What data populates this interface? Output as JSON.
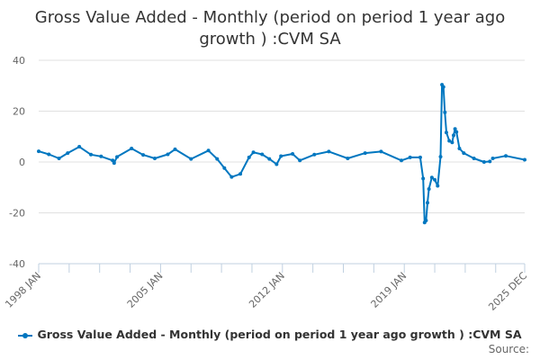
{
  "chart_data": {
    "type": "line",
    "title_line1": "Gross Value Added - Monthly (period on period 1 year ago",
    "title_line2": "growth ) :CVM SA",
    "xlabel": "",
    "ylabel": "",
    "ylim": [
      -40,
      40
    ],
    "yticks": [
      "40",
      "20",
      "0",
      "-20",
      "-40"
    ],
    "yticks_values": [
      40,
      20,
      0,
      -20,
      -40
    ],
    "xlim": [
      "1998-01",
      "2025-12"
    ],
    "xticks": [
      "1998 JAN",
      "2005 JAN",
      "2012 JAN",
      "2019 JAN",
      "2025 DEC"
    ],
    "xticks_dates": [
      "1998-01",
      "2005-01",
      "2012-01",
      "2019-01",
      "2025-12"
    ],
    "grid": "horizontal",
    "legend_position": "bottom",
    "color": "#0077c0",
    "series": [
      {
        "name": "Gross Value Added - Monthly (period on period 1 year ago growth ) :CVM SA",
        "points": [
          [
            "1998-01",
            4.2
          ],
          [
            "1998-08",
            3.0
          ],
          [
            "1999-03",
            1.4
          ],
          [
            "1999-09",
            3.5
          ],
          [
            "2000-05",
            6.0
          ],
          [
            "2001-01",
            2.9
          ],
          [
            "2001-08",
            2.2
          ],
          [
            "2002-04",
            0.6
          ],
          [
            "2002-05",
            -0.4
          ],
          [
            "2002-07",
            2.0
          ],
          [
            "2003-05",
            5.3
          ],
          [
            "2004-01",
            2.8
          ],
          [
            "2004-09",
            1.4
          ],
          [
            "2005-06",
            3.0
          ],
          [
            "2005-11",
            5.0
          ],
          [
            "2006-10",
            1.2
          ],
          [
            "2007-10",
            4.5
          ],
          [
            "2008-04",
            1.2
          ],
          [
            "2008-09",
            -2.4
          ],
          [
            "2009-02",
            -5.9
          ],
          [
            "2009-08",
            -4.7
          ],
          [
            "2010-02",
            1.8
          ],
          [
            "2010-05",
            3.8
          ],
          [
            "2010-11",
            3.0
          ],
          [
            "2011-04",
            1.2
          ],
          [
            "2011-09",
            -0.9
          ],
          [
            "2011-12",
            2.3
          ],
          [
            "2012-08",
            3.2
          ],
          [
            "2013-01",
            0.6
          ],
          [
            "2013-11",
            2.9
          ],
          [
            "2014-09",
            4.1
          ],
          [
            "2015-10",
            1.4
          ],
          [
            "2016-10",
            3.5
          ],
          [
            "2017-09",
            4.1
          ],
          [
            "2018-11",
            0.6
          ],
          [
            "2019-05",
            1.8
          ],
          [
            "2019-12",
            1.8
          ],
          [
            "2020-02",
            -6.5
          ],
          [
            "2020-03",
            -23.8
          ],
          [
            "2020-04",
            -23.0
          ],
          [
            "2020-05",
            -16.0
          ],
          [
            "2020-06",
            -10.6
          ],
          [
            "2020-08",
            -6.1
          ],
          [
            "2020-10",
            -7.0
          ],
          [
            "2020-12",
            -9.4
          ],
          [
            "2021-02",
            2.1
          ],
          [
            "2021-03",
            30.4
          ],
          [
            "2021-04",
            29.5
          ],
          [
            "2021-05",
            19.5
          ],
          [
            "2021-06",
            11.6
          ],
          [
            "2021-08",
            8.3
          ],
          [
            "2021-10",
            7.7
          ],
          [
            "2021-11",
            10.5
          ],
          [
            "2021-12",
            13.0
          ],
          [
            "2022-01",
            11.8
          ],
          [
            "2022-03",
            5.3
          ],
          [
            "2022-06",
            3.5
          ],
          [
            "2023-01",
            1.4
          ],
          [
            "2023-08",
            0.0
          ],
          [
            "2023-12",
            0.2
          ],
          [
            "2024-01",
            null
          ],
          [
            "2024-02",
            1.4
          ],
          [
            "2024-11",
            2.4
          ],
          [
            "2025-12",
            0.9
          ]
        ]
      }
    ]
  },
  "legend_label": "Gross Value Added - Monthly (period on period 1 year ago growth ) :CVM SA",
  "source_label": "Source:"
}
